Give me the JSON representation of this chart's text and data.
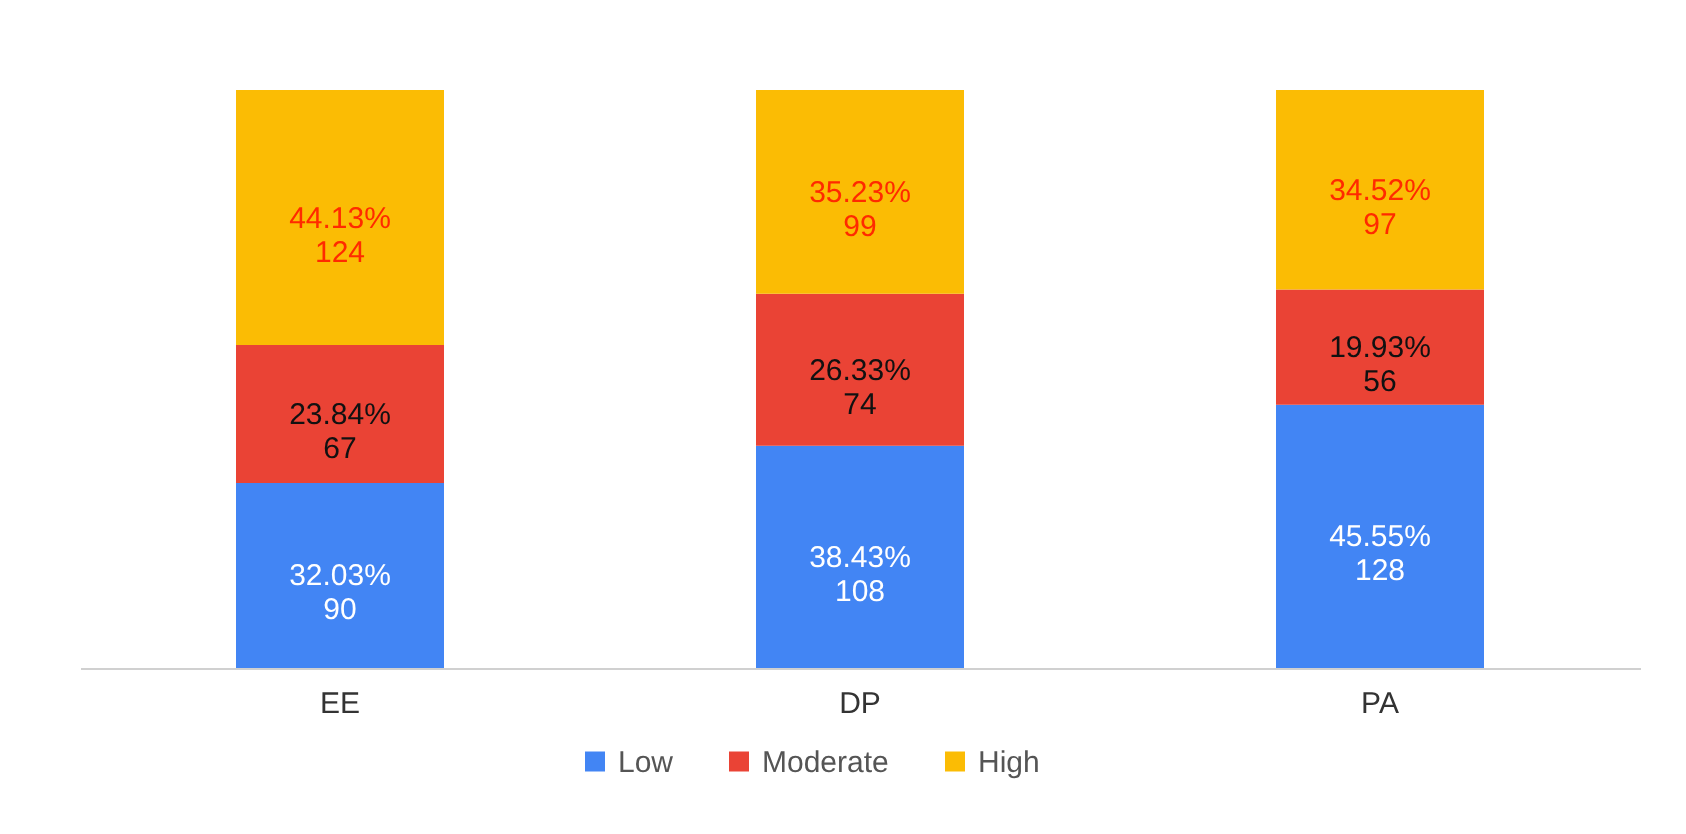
{
  "chart_data": {
    "type": "bar",
    "stacked": true,
    "categories": [
      "EE",
      "DP",
      "PA"
    ],
    "ylim": [
      0,
      281
    ],
    "legend": "bottom",
    "tick_labels": "x",
    "series": [
      {
        "name": "Low",
        "color": "#4285f4",
        "values": [
          90,
          108,
          128
        ],
        "value_labels": [
          "32.03%\n90",
          "38.43%\n108",
          "45.55%\n128"
        ]
      },
      {
        "name": "Moderate",
        "color": "#ea4335",
        "values": [
          67,
          74,
          56
        ],
        "value_labels": [
          "23.84%\n67",
          "26.33%\n74",
          "19.93%\n56"
        ]
      },
      {
        "name": "High",
        "color": "#fbbc04",
        "values": [
          124,
          99,
          97
        ],
        "value_labels": [
          "44.13%\n124",
          "35.23%\n99",
          "34.52%\n97"
        ]
      }
    ]
  }
}
